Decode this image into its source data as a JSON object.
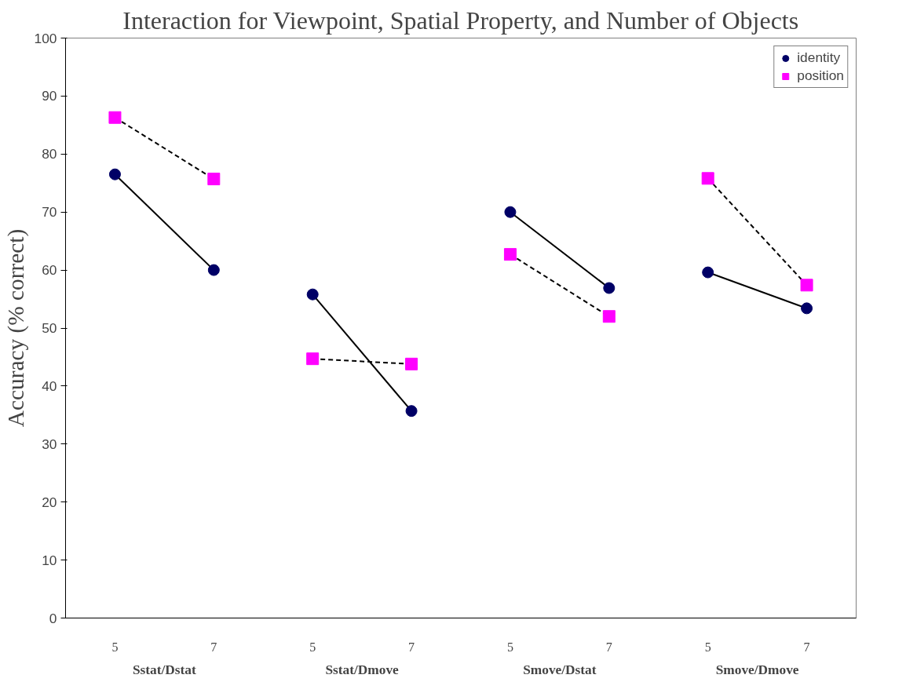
{
  "chart_data": {
    "type": "line",
    "title": "Interaction for Viewpoint, Spatial Property, and Number of Objects",
    "ylabel": "Accuracy (% correct)",
    "categories": [
      "5",
      "7",
      "5",
      "7",
      "5",
      "7",
      "5",
      "7"
    ],
    "annotations": [
      "Sstat/Dstat",
      "Sstat/Dmove",
      "Smove/Dstat",
      "Smove/Dmove"
    ],
    "series": [
      {
        "name": "identity",
        "color": "#000066",
        "marker": "circle",
        "line_style": "solid",
        "values": [
          76.5,
          60.0,
          null,
          null,
          null,
          null,
          null,
          null
        ]
      },
      {
        "name": "position",
        "color": "#ff00ff",
        "marker": "square",
        "line_style": "dashed",
        "values": [
          86.3,
          75.7,
          null,
          null,
          null,
          null,
          null,
          null
        ]
      },
      {
        "color": "#000066",
        "marker": "circle",
        "line_style": "solid",
        "values": [
          null,
          null,
          55.8,
          35.7,
          null,
          null,
          null,
          null
        ]
      },
      {
        "color": "#ff00ff",
        "marker": "square",
        "line_style": "dashed",
        "values": [
          null,
          null,
          44.7,
          43.8,
          null,
          null,
          null,
          null
        ]
      },
      {
        "color": "#000066",
        "marker": "circle",
        "line_style": "solid",
        "values": [
          null,
          null,
          null,
          null,
          70.0,
          56.9,
          null,
          null
        ]
      },
      {
        "color": "#ff00ff",
        "marker": "square",
        "line_style": "dashed",
        "values": [
          null,
          null,
          null,
          null,
          62.7,
          52.0,
          null,
          null
        ]
      },
      {
        "color": "#000066",
        "marker": "circle",
        "line_style": "solid",
        "values": [
          null,
          null,
          null,
          null,
          null,
          null,
          59.6,
          53.4
        ]
      },
      {
        "color": "#ff00ff",
        "marker": "square",
        "line_style": "dashed",
        "values": [
          null,
          null,
          null,
          null,
          null,
          null,
          75.8,
          57.4
        ]
      }
    ],
    "ylim": [
      0,
      100
    ],
    "yticks": [
      0,
      10,
      20,
      30,
      40,
      50,
      60,
      70,
      80,
      90,
      100
    ],
    "grid": false,
    "legend": "top right"
  }
}
